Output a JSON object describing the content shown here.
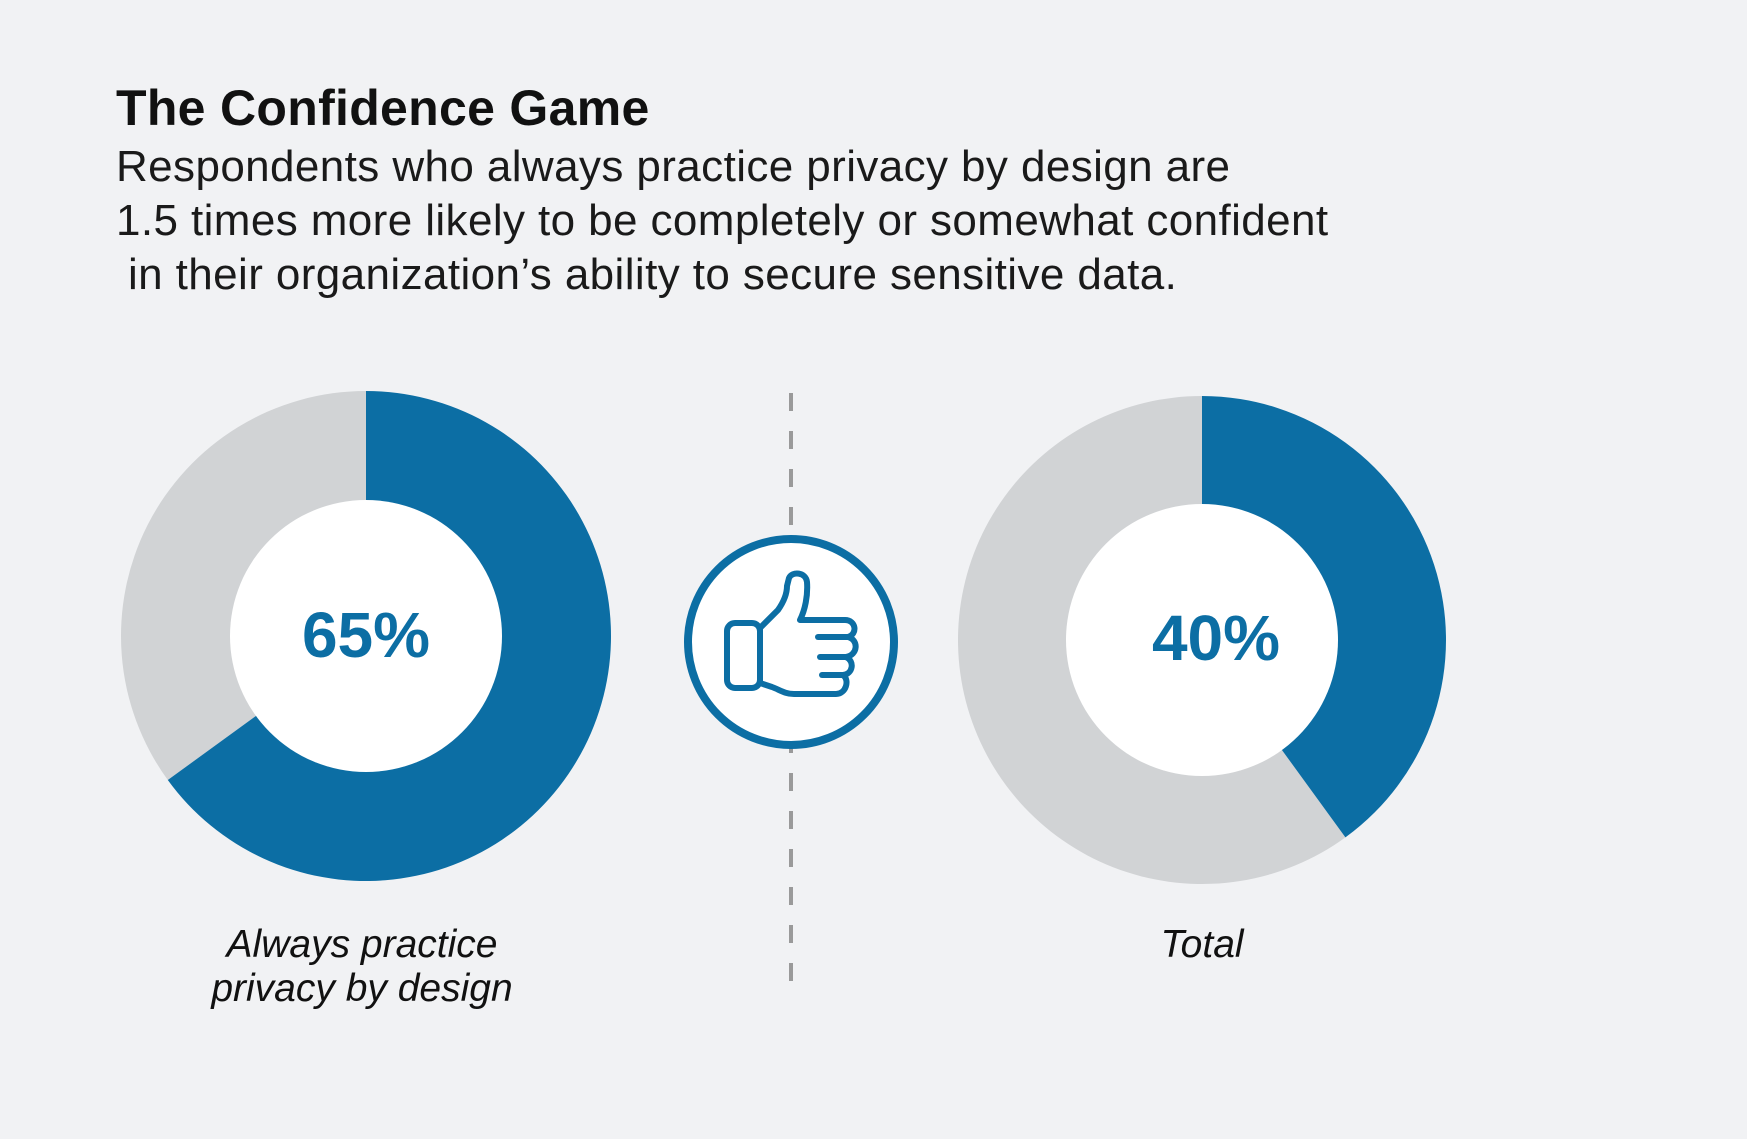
{
  "header": {
    "title": "The Confidence Game",
    "subtitle_lines": [
      "Respondents who always practice privacy by design are",
      "1.5 times more likely to be completely or somewhat confident",
      "in their organization’s ability to secure sensitive data."
    ]
  },
  "colors": {
    "accent": "#0c6ea4",
    "remainder": "#d1d3d5",
    "background": "#f1f2f4",
    "divider": "#9a9a9a"
  },
  "center_icon": "thumbs-up-icon",
  "chart_data": [
    {
      "type": "pie",
      "variant": "donut",
      "value_label": "65%",
      "values": [
        65,
        35
      ],
      "category_lines": [
        "Always practice",
        "privacy by design"
      ]
    },
    {
      "type": "pie",
      "variant": "donut",
      "value_label": "40%",
      "values": [
        40,
        60
      ],
      "category_lines": [
        "Total"
      ]
    }
  ]
}
